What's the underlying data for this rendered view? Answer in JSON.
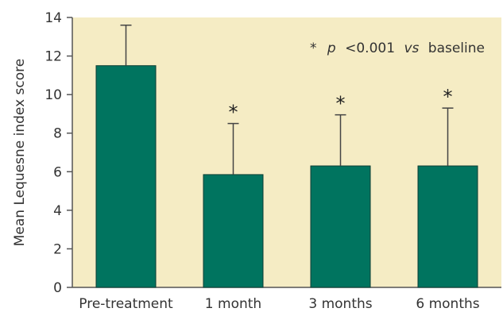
{
  "chart_data": {
    "type": "bar",
    "title": "",
    "xlabel": "",
    "ylabel": "Mean Lequesne index score",
    "ylim": [
      0,
      14
    ],
    "yticks": [
      0,
      2,
      4,
      6,
      8,
      10,
      12,
      14
    ],
    "categories": [
      "Pre-treatment",
      "1 month",
      "3 months",
      "6 months"
    ],
    "series": [
      {
        "values": [
          11.5,
          5.85,
          6.3,
          6.3
        ],
        "error_upper": [
          13.6,
          8.5,
          8.95,
          9.3
        ],
        "significant": [
          false,
          true,
          true,
          true
        ]
      }
    ],
    "significance_marker": "*",
    "annotation": {
      "star": "*",
      "p": "p",
      "middle": "<0.001",
      "vs": "vs",
      "end": "baseline"
    },
    "colors": {
      "plot_background": "#f5ecc4",
      "bar": "#00745f",
      "axis": "#555555",
      "error_bar": "#444444"
    }
  }
}
